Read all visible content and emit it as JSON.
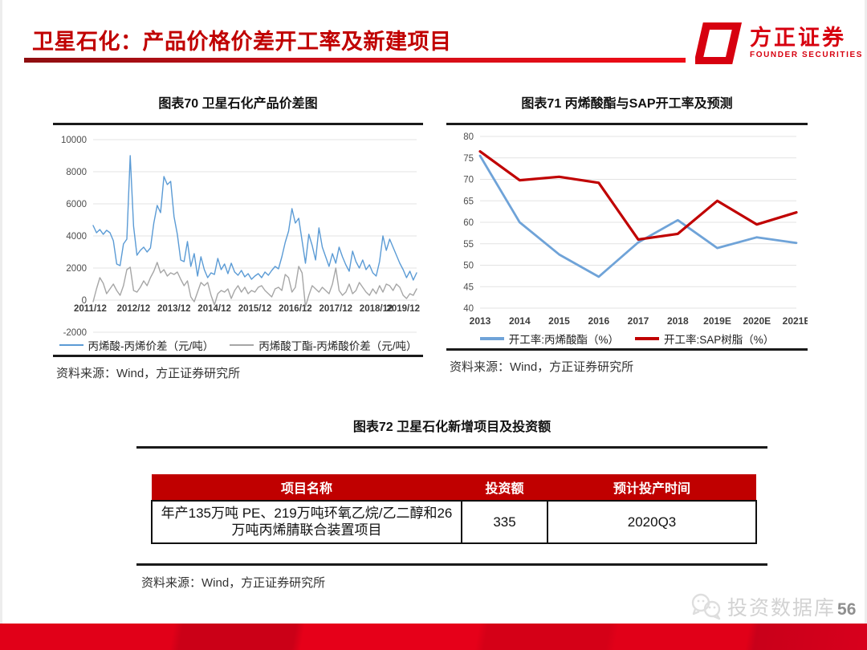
{
  "header": {
    "title": "卫星石化：产品价格价差开工率及新建项目",
    "logo_cn": "方正证券",
    "logo_en": "FOUNDER SECURITIES"
  },
  "colors": {
    "accent_red": "#c00000",
    "spread_blue": "#5b9bd5",
    "spread_gray": "#a6a6a6",
    "rate_blue": "#6fa3d8",
    "rate_red": "#c00000"
  },
  "figure70": {
    "title": "图表70 卫星石化产品价差图",
    "source": "资料来源：Wind，方正证券研究所"
  },
  "figure71": {
    "title": "图表71 丙烯酸酯与SAP开工率及预测",
    "source": "资料来源：Wind，方正证券研究所"
  },
  "figure72": {
    "title": "图表72 卫星石化新增项目及投资额",
    "source": "资料来源：Wind，方正证券研究所",
    "table": {
      "headers": [
        "项目名称",
        "投资额",
        "预计投产时间"
      ],
      "rows": [
        [
          "年产135万吨 PE、219万吨环氧乙烷/乙二醇和26 万吨丙烯腈联合装置项目",
          "335",
          "2020Q3"
        ]
      ]
    }
  },
  "watermark": {
    "label": "投资数据库",
    "page": "56"
  },
  "chart_data": [
    {
      "type": "line",
      "title": "图表70 卫星石化产品价差图",
      "ylim": [
        -2000,
        10000
      ],
      "ystep": 2000,
      "grid": true,
      "legend_position": "bottom",
      "x_tick_labels": [
        "2011/12",
        "2012/12",
        "2013/12",
        "2014/12",
        "2015/12",
        "2016/12",
        "2017/12",
        "2018/12",
        "2019/12"
      ],
      "x_labels_at_zero_line": true,
      "series": [
        {
          "name": "丙烯酸-丙烯价差（元/吨）",
          "color": "#5b9bd5",
          "width": 1.4,
          "values": [
            4650,
            4200,
            4400,
            4100,
            4350,
            4200,
            3700,
            2250,
            2150,
            3500,
            3800,
            9000,
            4600,
            2800,
            3100,
            3300,
            3000,
            3250,
            4800,
            5900,
            5450,
            7700,
            7200,
            7400,
            5200,
            4100,
            2500,
            2400,
            3650,
            2100,
            2900,
            1500,
            2700,
            1900,
            1400,
            1700,
            1600,
            2600,
            1900,
            2250,
            1650,
            2300,
            1750,
            1550,
            1850,
            1450,
            1650,
            1300,
            1500,
            1650,
            1400,
            1750,
            1550,
            1850,
            2100,
            1950,
            2700,
            3600,
            4300,
            5700,
            4800,
            5100,
            3700,
            2300,
            4100,
            3400,
            2500,
            4500,
            3300,
            2700,
            2100,
            2900,
            2300,
            3300,
            2700,
            2200,
            1800,
            3050,
            2400,
            2000,
            2500,
            1900,
            2200,
            1700,
            1500,
            2400,
            4000,
            3100,
            3800,
            3300,
            2800,
            2300,
            1900,
            1400,
            1800,
            1250,
            1700
          ]
        },
        {
          "name": "丙烯酸丁酯-丙烯酸价差（元/吨）",
          "color": "#a6a6a6",
          "width": 1.4,
          "values": [
            -100,
            700,
            1400,
            1050,
            400,
            700,
            1000,
            600,
            300,
            900,
            1900,
            2050,
            600,
            500,
            800,
            1200,
            900,
            1400,
            1800,
            2350,
            1700,
            1900,
            1500,
            1700,
            1600,
            1750,
            1300,
            900,
            1200,
            200,
            -100,
            500,
            1100,
            900,
            1100,
            300,
            -300,
            400,
            600,
            500,
            700,
            100,
            600,
            900,
            500,
            800,
            400,
            600,
            500,
            800,
            900,
            600,
            400,
            200,
            700,
            800,
            600,
            1600,
            1400,
            500,
            800,
            2100,
            1700,
            -400,
            300,
            900,
            700,
            500,
            800,
            600,
            400,
            1000,
            2000,
            600,
            300,
            500,
            1000,
            400,
            600,
            1100,
            800,
            500,
            300,
            700,
            400,
            900,
            500,
            1000,
            900,
            600,
            1000,
            800,
            300,
            100,
            400,
            300,
            700
          ]
        }
      ]
    },
    {
      "type": "line",
      "title": "图表71 丙烯酸酯与SAP开工率及预测",
      "ylim": [
        40,
        80
      ],
      "ystep": 5,
      "grid": true,
      "legend_position": "bottom",
      "categories": [
        "2013",
        "2014",
        "2015",
        "2016",
        "2017",
        "2018",
        "2019E",
        "2020E",
        "2021E"
      ],
      "series": [
        {
          "name": "开工率:丙烯酸酯（%）",
          "color": "#6fa3d8",
          "width": 2.8,
          "values": [
            75.5,
            60,
            52.5,
            47.3,
            55.3,
            60.5,
            54,
            56.5,
            55.2
          ]
        },
        {
          "name": "开工率:SAP树脂（%）",
          "color": "#c00000",
          "width": 3.2,
          "values": [
            76.5,
            69.8,
            70.6,
            69.2,
            56,
            57.3,
            65,
            59.5,
            62.3
          ]
        }
      ]
    }
  ]
}
